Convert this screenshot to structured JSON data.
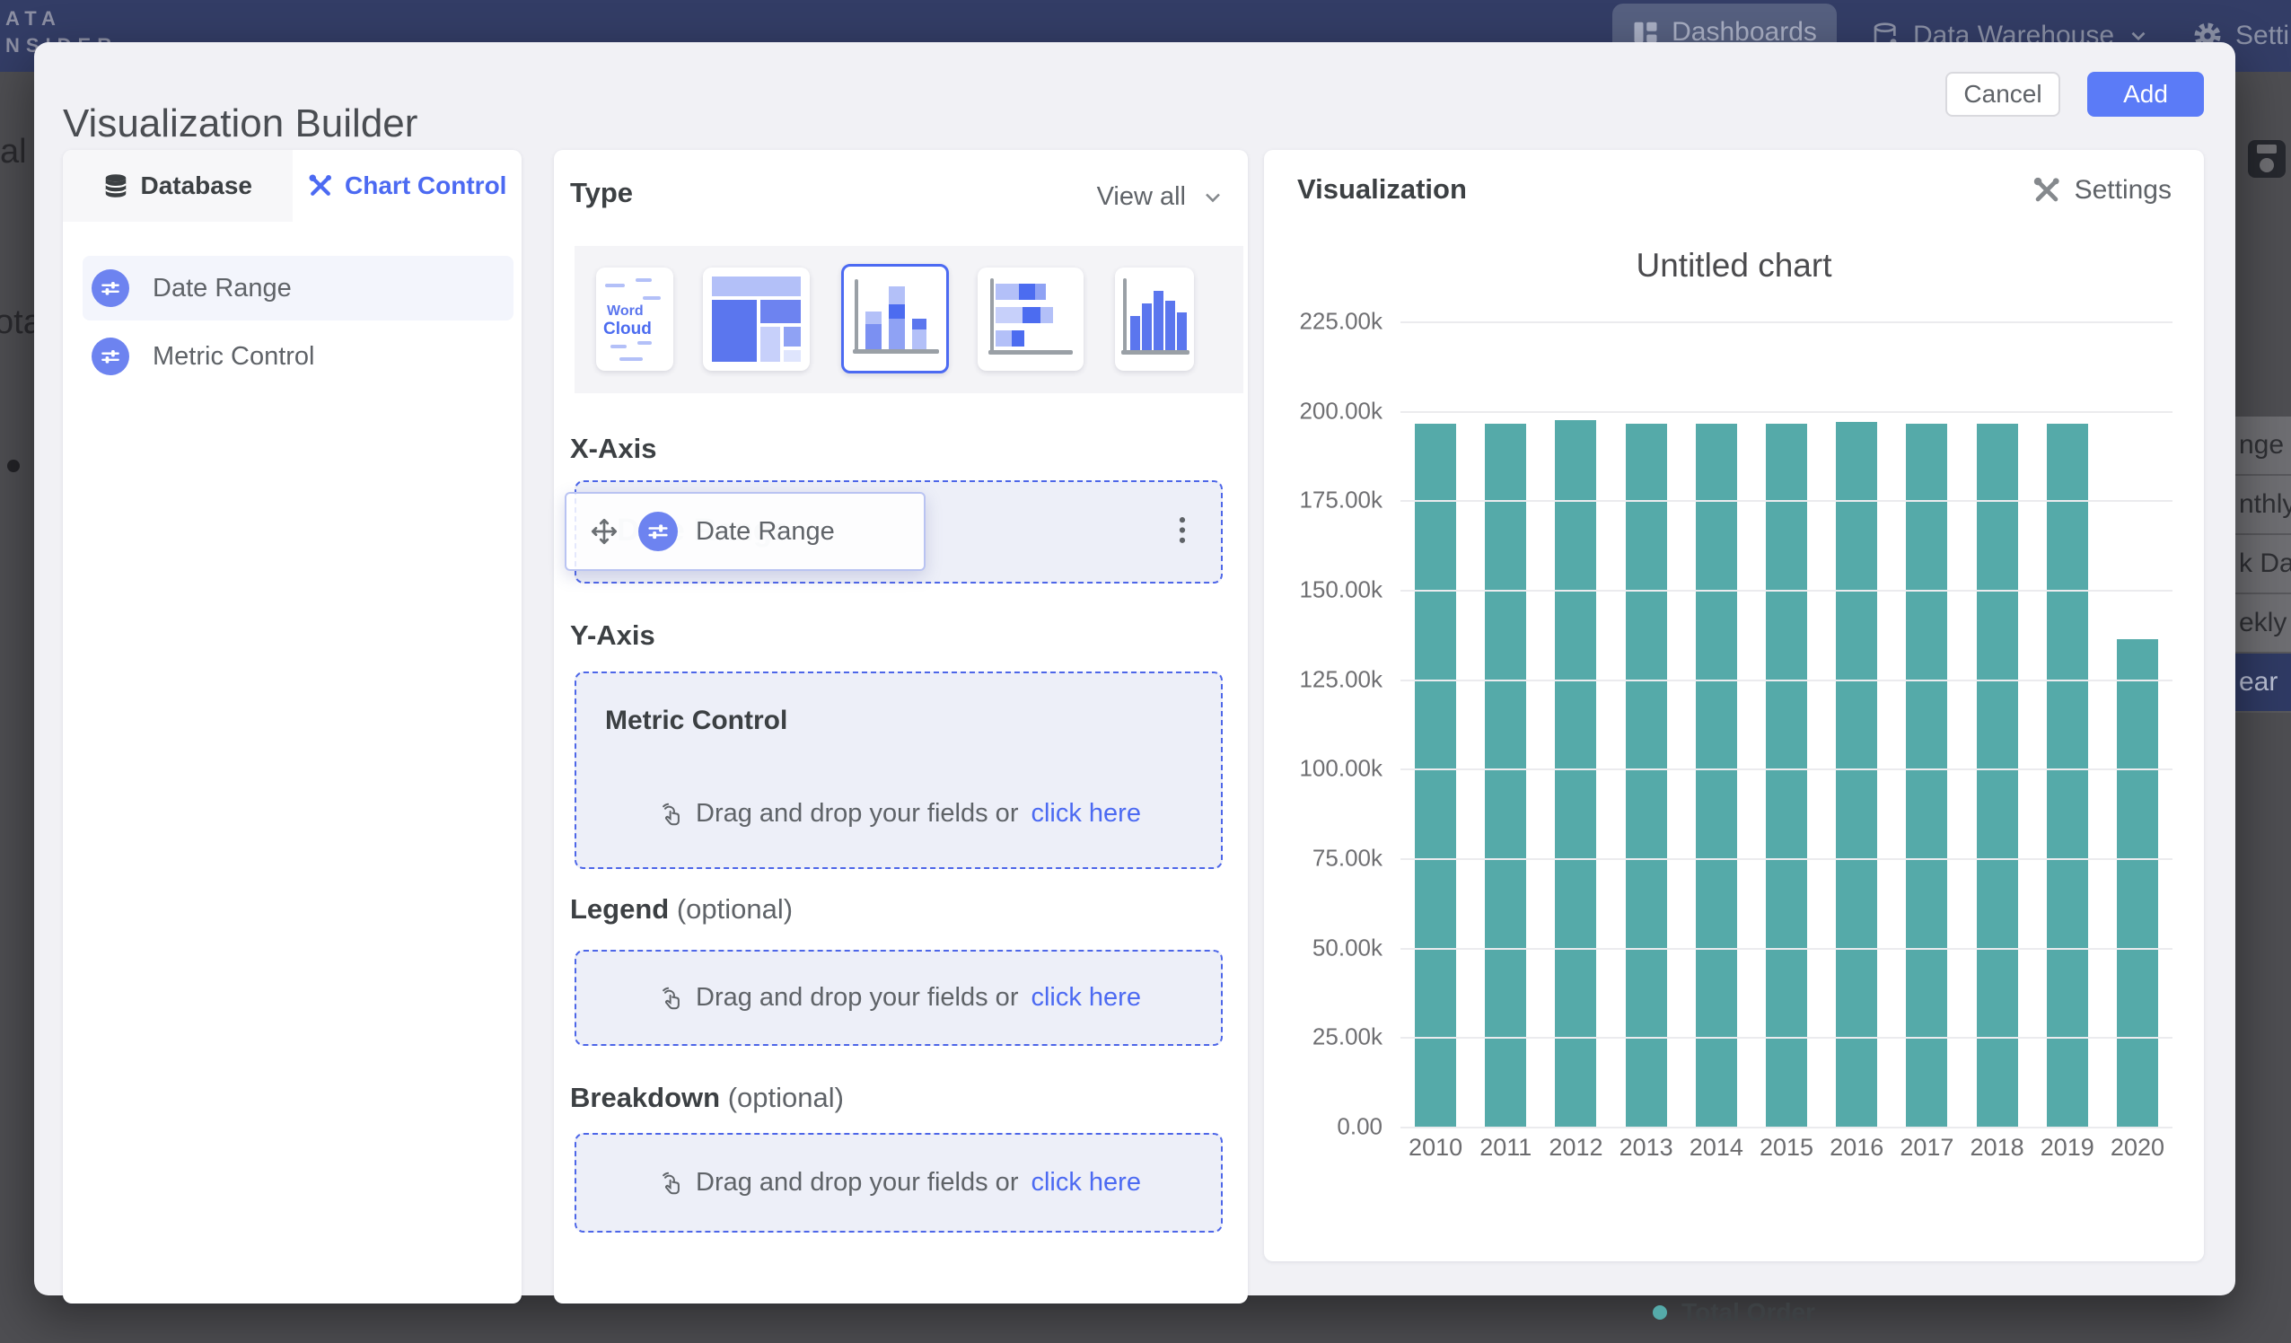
{
  "navbar": {
    "logo_line1": "ATA",
    "logo_line2": "NSIDER",
    "items": [
      {
        "label": "Dashboards",
        "active": true
      },
      {
        "label": "Data Warehouse",
        "active": false
      },
      {
        "label": "Settings",
        "active": false
      }
    ]
  },
  "background": {
    "left_fragments": {
      "fragment1": "al",
      "fragment2": "ota"
    },
    "dropdown": {
      "items": [
        {
          "label": "nge",
          "selected": false
        },
        {
          "label": "nthly",
          "selected": false
        },
        {
          "label": "k Date",
          "selected": false
        },
        {
          "label": "ekly",
          "selected": false
        },
        {
          "label": "ear",
          "selected": true
        }
      ]
    }
  },
  "modal": {
    "title": "Visualization Builder",
    "cancel_label": "Cancel",
    "add_label": "Add"
  },
  "sidebar": {
    "tabs": [
      {
        "label": "Database",
        "active": false
      },
      {
        "label": "Chart Control",
        "active": true
      }
    ],
    "fields": [
      {
        "label": "Date Range",
        "highlighted": true
      },
      {
        "label": "Metric Control",
        "highlighted": false
      }
    ]
  },
  "builder": {
    "type": {
      "heading": "Type",
      "view_all_label": "View all",
      "thumbnails": [
        "word-cloud",
        "treemap",
        "stacked-column",
        "stacked-bar",
        "column"
      ],
      "selected": "stacked-column",
      "word_cloud": {
        "word1": "Word",
        "word2": "Cloud"
      }
    },
    "x_axis": {
      "heading": "X-Axis",
      "chip_label": "Date Range",
      "ghost_label": "Date Range"
    },
    "y_axis": {
      "heading": "Y-Axis",
      "zone_label": "Metric Control",
      "drop_text": "Drag and drop your fields or",
      "drop_link": "click here"
    },
    "legend": {
      "heading": "Legend",
      "optional_suffix": "(optional)",
      "drop_text": "Drag and drop your fields or",
      "drop_link": "click here"
    },
    "breakdown": {
      "heading": "Breakdown",
      "optional_suffix": "(optional)",
      "drop_text": "Drag and drop your fields or",
      "drop_link": "click here"
    }
  },
  "visualization": {
    "heading": "Visualization",
    "settings_label": "Settings"
  },
  "chart_data": {
    "type": "bar",
    "title": "Untitled chart",
    "categories": [
      "2010",
      "2011",
      "2012",
      "2013",
      "2014",
      "2015",
      "2016",
      "2017",
      "2018",
      "2019",
      "2020"
    ],
    "series": [
      {
        "name": "Total Order",
        "values": [
          196400,
          196400,
          197300,
          196400,
          196400,
          196400,
          196800,
          196400,
          196400,
          196400,
          136300
        ]
      }
    ],
    "xlabel": "",
    "ylabel": "",
    "ylim": [
      0,
      225000
    ],
    "grid": true,
    "legend_position": "bottom",
    "bar_color": "#55aaa9",
    "yticks": [
      {
        "value": 225000,
        "label": "225.00k"
      },
      {
        "value": 200000,
        "label": "200.00k"
      },
      {
        "value": 175000,
        "label": "175.00k"
      },
      {
        "value": 150000,
        "label": "150.00k"
      },
      {
        "value": 125000,
        "label": "125.00k"
      },
      {
        "value": 100000,
        "label": "100.00k"
      },
      {
        "value": 75000,
        "label": "75.00k"
      },
      {
        "value": 50000,
        "label": "50.00k"
      },
      {
        "value": 25000,
        "label": "25.00k"
      },
      {
        "value": 0,
        "label": "0.00"
      }
    ]
  }
}
